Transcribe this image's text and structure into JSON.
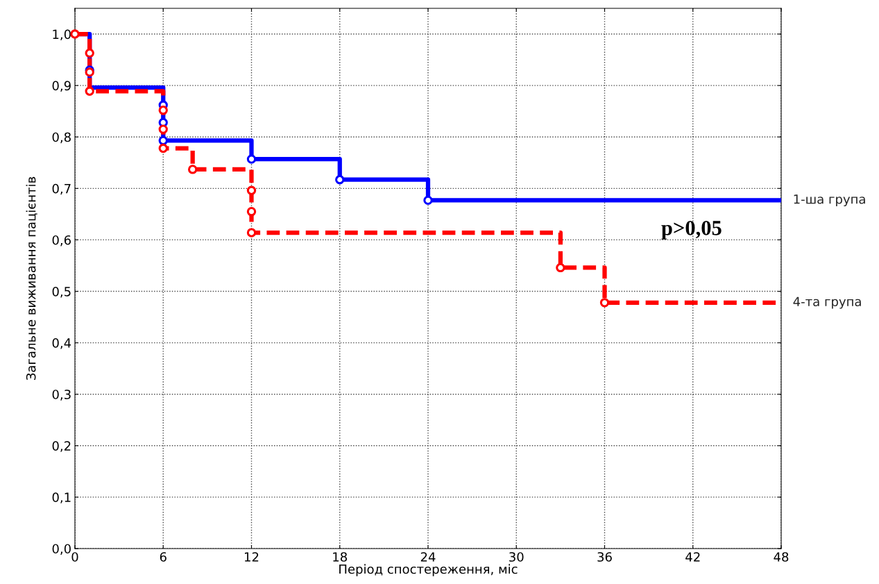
{
  "chart_data": {
    "type": "step",
    "xlabel": "Період спостереження, міс",
    "ylabel": "Загальне виживання пацієнтів",
    "xlim": [
      0,
      48
    ],
    "xticks": [
      0,
      6,
      12,
      18,
      24,
      30,
      36,
      42,
      48
    ],
    "ylim": [
      0,
      1.05
    ],
    "yticks": [
      {
        "value": 0,
        "label": "0,0"
      },
      {
        "value": 0.1,
        "label": "0,1"
      },
      {
        "value": 0.2,
        "label": "0,2"
      },
      {
        "value": 0.3,
        "label": "0,3"
      },
      {
        "value": 0.4,
        "label": "0,4"
      },
      {
        "value": 0.5,
        "label": "0,5"
      },
      {
        "value": 0.6,
        "label": "0,6"
      },
      {
        "value": 0.7,
        "label": "0,7"
      },
      {
        "value": 0.8,
        "label": "0,8"
      },
      {
        "value": 0.9,
        "label": "0,9"
      },
      {
        "value": 1.0,
        "label": "1,0"
      }
    ],
    "grid": true,
    "legend": false,
    "annotations": [
      "p>0,05"
    ],
    "series": [
      {
        "name": "1-ша група",
        "color": "#0000ff",
        "line_style": "solid",
        "marker": "none",
        "x": [
          0,
          1,
          6,
          12,
          18,
          24,
          48
        ],
        "values": [
          1.0,
          0.896,
          0.793,
          0.757,
          0.717,
          0.677,
          0.677
        ]
      },
      {
        "name": "4-та група",
        "color": "#ff0000",
        "line_style": "dashed",
        "marker": "none",
        "x": [
          0,
          1,
          6,
          8,
          12,
          33,
          36,
          48
        ],
        "values": [
          1.0,
          0.889,
          0.778,
          0.737,
          0.614,
          0.546,
          0.478,
          0.478
        ]
      },
      {
        "type": "scatter",
        "color": "#0000ff",
        "marker": "circle",
        "x": [
          1,
          6,
          6,
          6,
          12,
          18,
          24
        ],
        "values": [
          0.93,
          0.862,
          0.828,
          0.793,
          0.757,
          0.717,
          0.677
        ]
      },
      {
        "type": "scatter",
        "color": "#ff0000",
        "marker": "circle",
        "x": [
          0,
          1,
          1,
          1,
          6,
          6,
          6,
          8,
          12,
          12,
          12,
          33,
          36
        ],
        "values": [
          1.0,
          0.963,
          0.926,
          0.889,
          0.852,
          0.815,
          0.778,
          0.737,
          0.696,
          0.655,
          0.614,
          0.546,
          0.478
        ]
      }
    ]
  }
}
